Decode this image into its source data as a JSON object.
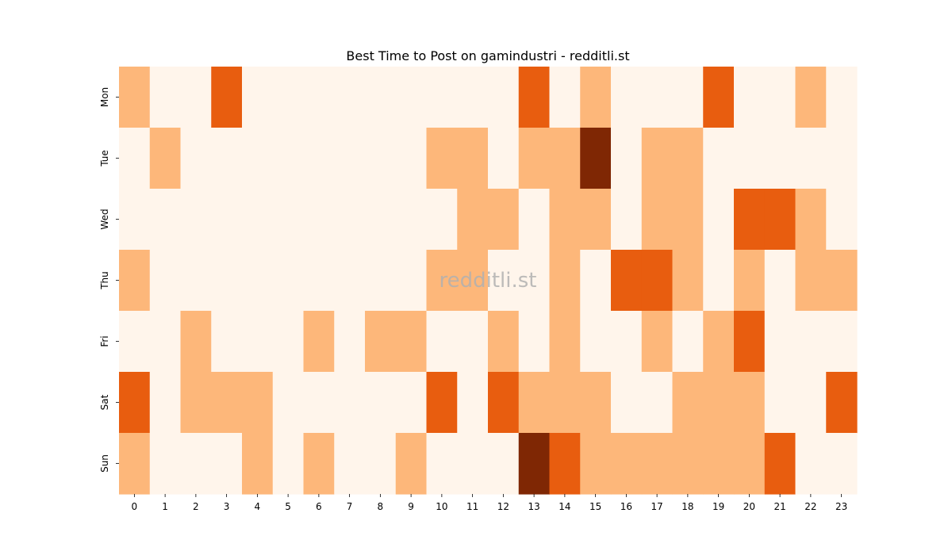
{
  "chart_data": {
    "type": "heatmap",
    "title": "Best Time to Post on gamindustri - redditli.st",
    "watermark": "redditli.st",
    "xlabel": "",
    "ylabel": "",
    "x_categories": [
      "0",
      "1",
      "2",
      "3",
      "4",
      "5",
      "6",
      "7",
      "8",
      "9",
      "10",
      "11",
      "12",
      "13",
      "14",
      "15",
      "16",
      "17",
      "18",
      "19",
      "20",
      "21",
      "22",
      "23"
    ],
    "y_categories": [
      "Mon",
      "Tue",
      "Wed",
      "Thu",
      "Fri",
      "Sat",
      "Sun"
    ],
    "values": [
      [
        1,
        0,
        0,
        2,
        0,
        0,
        0,
        0,
        0,
        0,
        0,
        0,
        0,
        2,
        0,
        1,
        0,
        0,
        0,
        2,
        0,
        0,
        1,
        0
      ],
      [
        0,
        1,
        0,
        0,
        0,
        0,
        0,
        0,
        0,
        0,
        1,
        1,
        0,
        1,
        1,
        3,
        0,
        1,
        1,
        0,
        0,
        0,
        0,
        0
      ],
      [
        0,
        0,
        0,
        0,
        0,
        0,
        0,
        0,
        0,
        0,
        0,
        1,
        1,
        0,
        1,
        1,
        0,
        1,
        1,
        0,
        2,
        2,
        1,
        0
      ],
      [
        1,
        0,
        0,
        0,
        0,
        0,
        0,
        0,
        0,
        0,
        1,
        1,
        0,
        0,
        1,
        0,
        2,
        2,
        1,
        0,
        1,
        0,
        1,
        1
      ],
      [
        0,
        0,
        1,
        0,
        0,
        0,
        1,
        0,
        1,
        1,
        0,
        0,
        1,
        0,
        1,
        0,
        0,
        1,
        0,
        1,
        2,
        0,
        0,
        0
      ],
      [
        2,
        0,
        1,
        1,
        1,
        0,
        0,
        0,
        0,
        0,
        2,
        0,
        2,
        1,
        1,
        1,
        0,
        0,
        1,
        1,
        1,
        0,
        0,
        2
      ],
      [
        1,
        0,
        0,
        0,
        1,
        0,
        1,
        0,
        0,
        1,
        0,
        0,
        0,
        3,
        2,
        1,
        1,
        1,
        1,
        1,
        1,
        2,
        0,
        0
      ]
    ],
    "colormap": "Oranges",
    "colors": [
      "#fff5eb",
      "#fdb77a",
      "#e85d0f",
      "#7f2704"
    ],
    "grid": false,
    "colorbar": false
  }
}
